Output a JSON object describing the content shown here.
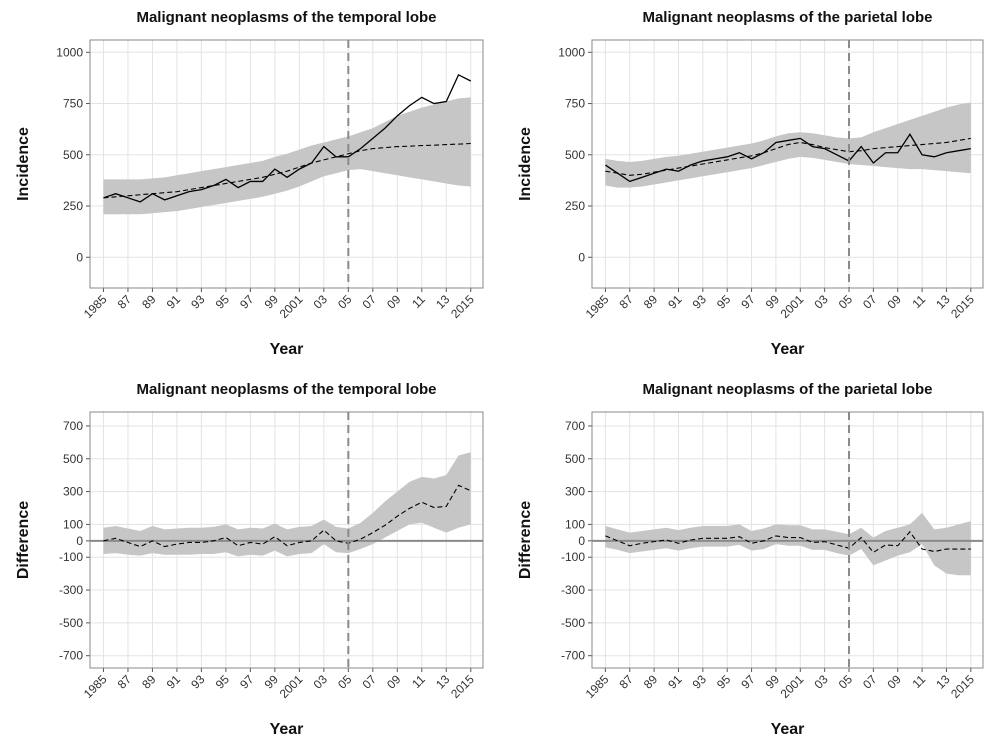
{
  "chart_data": [
    {
      "type": "line",
      "title": "Malignant neoplasms of the temporal lobe",
      "xlabel": "Year",
      "ylabel": "Incidence",
      "x": [
        1985,
        1986,
        1987,
        1988,
        1989,
        1990,
        1991,
        1992,
        1993,
        1994,
        1995,
        1996,
        1997,
        1998,
        1999,
        2000,
        2001,
        2002,
        2003,
        2004,
        2005,
        2006,
        2007,
        2008,
        2009,
        2010,
        2011,
        2012,
        2013,
        2014,
        2015
      ],
      "xlim": [
        1983.9,
        2016
      ],
      "xticks": [
        1985,
        {
          "value": 1987,
          "label": "87"
        },
        {
          "value": 1989,
          "label": "89"
        },
        {
          "value": 1991,
          "label": "91"
        },
        {
          "value": 1993,
          "label": "93"
        },
        {
          "value": 1995,
          "label": "95"
        },
        {
          "value": 1997,
          "label": "97"
        },
        {
          "value": 1999,
          "label": "99"
        },
        2001,
        {
          "value": 2003,
          "label": "03"
        },
        {
          "value": 2005,
          "label": "05"
        },
        {
          "value": 2007,
          "label": "07"
        },
        {
          "value": 2009,
          "label": "09"
        },
        {
          "value": 2011,
          "label": "11"
        },
        {
          "value": 2013,
          "label": "13"
        },
        2015
      ],
      "ylim": [
        -150,
        1060
      ],
      "yticks": [
        0,
        250,
        500,
        750,
        1000
      ],
      "grid": true,
      "vline": 2005,
      "color": "#000000",
      "band_color": "#c6c6c6",
      "vline_color": "#8a8a8a",
      "observed": [
        290,
        310,
        290,
        270,
        310,
        280,
        300,
        320,
        330,
        350,
        380,
        340,
        370,
        370,
        430,
        390,
        430,
        460,
        540,
        490,
        490,
        530,
        580,
        630,
        690,
        740,
        780,
        750,
        760,
        890,
        860
      ],
      "predicted": [
        290,
        295,
        300,
        305,
        310,
        315,
        320,
        330,
        340,
        350,
        360,
        370,
        380,
        390,
        405,
        420,
        440,
        460,
        475,
        490,
        505,
        520,
        530,
        535,
        540,
        542,
        545,
        547,
        550,
        552,
        555
      ],
      "lower": [
        210,
        210,
        210,
        210,
        215,
        220,
        225,
        235,
        245,
        255,
        265,
        275,
        285,
        295,
        310,
        325,
        345,
        370,
        395,
        410,
        425,
        430,
        420,
        410,
        400,
        390,
        380,
        370,
        360,
        350,
        345
      ],
      "upper": [
        380,
        380,
        380,
        380,
        385,
        390,
        400,
        410,
        420,
        430,
        440,
        450,
        460,
        470,
        490,
        505,
        525,
        545,
        560,
        575,
        590,
        610,
        630,
        660,
        690,
        710,
        730,
        745,
        760,
        775,
        780
      ]
    },
    {
      "type": "line",
      "title": "Malignant neoplasms of the parietal lobe",
      "xlabel": "Year",
      "ylabel": "Incidence",
      "x": [
        1985,
        1986,
        1987,
        1988,
        1989,
        1990,
        1991,
        1992,
        1993,
        1994,
        1995,
        1996,
        1997,
        1998,
        1999,
        2000,
        2001,
        2002,
        2003,
        2004,
        2005,
        2006,
        2007,
        2008,
        2009,
        2010,
        2011,
        2012,
        2013,
        2014,
        2015
      ],
      "xlim": [
        1983.9,
        2016
      ],
      "xticks": [
        1985,
        {
          "value": 1987,
          "label": "87"
        },
        {
          "value": 1989,
          "label": "89"
        },
        {
          "value": 1991,
          "label": "91"
        },
        {
          "value": 1993,
          "label": "93"
        },
        {
          "value": 1995,
          "label": "95"
        },
        {
          "value": 1997,
          "label": "97"
        },
        {
          "value": 1999,
          "label": "99"
        },
        2001,
        {
          "value": 2003,
          "label": "03"
        },
        {
          "value": 2005,
          "label": "05"
        },
        {
          "value": 2007,
          "label": "07"
        },
        {
          "value": 2009,
          "label": "09"
        },
        {
          "value": 2011,
          "label": "11"
        },
        {
          "value": 2013,
          "label": "13"
        },
        2015
      ],
      "ylim": [
        -150,
        1060
      ],
      "yticks": [
        0,
        250,
        500,
        750,
        1000
      ],
      "grid": true,
      "vline": 2005,
      "color": "#000000",
      "band_color": "#c6c6c6",
      "vline_color": "#8a8a8a",
      "observed": [
        450,
        410,
        370,
        390,
        410,
        430,
        420,
        450,
        470,
        480,
        490,
        510,
        480,
        510,
        560,
        570,
        580,
        540,
        530,
        500,
        470,
        540,
        460,
        510,
        510,
        600,
        500,
        490,
        510,
        520,
        530
      ],
      "predicted": [
        420,
        410,
        400,
        405,
        415,
        425,
        435,
        445,
        455,
        465,
        475,
        485,
        495,
        510,
        530,
        550,
        560,
        550,
        535,
        525,
        515,
        520,
        530,
        535,
        540,
        545,
        550,
        555,
        560,
        570,
        580
      ],
      "lower": [
        350,
        340,
        340,
        345,
        355,
        365,
        375,
        385,
        395,
        405,
        415,
        425,
        435,
        450,
        465,
        480,
        490,
        485,
        475,
        465,
        455,
        450,
        445,
        440,
        435,
        430,
        430,
        425,
        420,
        415,
        410
      ],
      "upper": [
        480,
        470,
        465,
        470,
        480,
        490,
        495,
        505,
        515,
        525,
        535,
        545,
        555,
        570,
        590,
        605,
        610,
        605,
        595,
        585,
        580,
        585,
        610,
        630,
        650,
        670,
        690,
        710,
        730,
        745,
        755
      ]
    },
    {
      "type": "difference",
      "title": "Malignant neoplasms of the temporal lobe",
      "xlabel": "Year",
      "ylabel": "Difference",
      "x": [
        1985,
        1986,
        1987,
        1988,
        1989,
        1990,
        1991,
        1992,
        1993,
        1994,
        1995,
        1996,
        1997,
        1998,
        1999,
        2000,
        2001,
        2002,
        2003,
        2004,
        2005,
        2006,
        2007,
        2008,
        2009,
        2010,
        2011,
        2012,
        2013,
        2014,
        2015
      ],
      "xlim": [
        1983.9,
        2016
      ],
      "xticks": [
        1985,
        {
          "value": 1987,
          "label": "87"
        },
        {
          "value": 1989,
          "label": "89"
        },
        {
          "value": 1991,
          "label": "91"
        },
        {
          "value": 1993,
          "label": "93"
        },
        {
          "value": 1995,
          "label": "95"
        },
        {
          "value": 1997,
          "label": "97"
        },
        {
          "value": 1999,
          "label": "99"
        },
        2001,
        {
          "value": 2003,
          "label": "03"
        },
        {
          "value": 2005,
          "label": "05"
        },
        {
          "value": 2007,
          "label": "07"
        },
        {
          "value": 2009,
          "label": "09"
        },
        {
          "value": 2011,
          "label": "11"
        },
        {
          "value": 2013,
          "label": "13"
        },
        2015
      ],
      "ylim": [
        -775,
        785
      ],
      "yticks": [
        -700,
        -500,
        -300,
        -100,
        0,
        100,
        300,
        500,
        700
      ],
      "grid": true,
      "vline": 2005,
      "hline": 0,
      "color": "#000000",
      "band_color": "#c6c6c6",
      "vline_color": "#8a8a8a",
      "predicted": [
        0,
        15,
        -10,
        -35,
        0,
        -35,
        -20,
        -10,
        -10,
        0,
        20,
        -30,
        -10,
        -20,
        25,
        -30,
        -10,
        0,
        65,
        0,
        -15,
        10,
        50,
        95,
        150,
        198,
        235,
        203,
        210,
        338,
        305
      ],
      "lower": [
        -80,
        -75,
        -85,
        -90,
        -75,
        -85,
        -85,
        -85,
        -80,
        -80,
        -70,
        -95,
        -85,
        -90,
        -60,
        -95,
        -80,
        -75,
        -20,
        -70,
        -75,
        -50,
        -20,
        20,
        60,
        100,
        110,
        80,
        50,
        80,
        100
      ],
      "upper": [
        80,
        90,
        75,
        60,
        90,
        70,
        75,
        80,
        80,
        85,
        100,
        70,
        80,
        75,
        105,
        70,
        85,
        90,
        130,
        85,
        75,
        110,
        170,
        240,
        300,
        360,
        390,
        380,
        400,
        520,
        540
      ]
    },
    {
      "type": "difference",
      "title": "Malignant neoplasms of the parietal lobe",
      "xlabel": "Year",
      "ylabel": "Difference",
      "x": [
        1985,
        1986,
        1987,
        1988,
        1989,
        1990,
        1991,
        1992,
        1993,
        1994,
        1995,
        1996,
        1997,
        1998,
        1999,
        2000,
        2001,
        2002,
        2003,
        2004,
        2005,
        2006,
        2007,
        2008,
        2009,
        2010,
        2011,
        2012,
        2013,
        2014,
        2015
      ],
      "xlim": [
        1983.9,
        2016
      ],
      "xticks": [
        1985,
        {
          "value": 1987,
          "label": "87"
        },
        {
          "value": 1989,
          "label": "89"
        },
        {
          "value": 1991,
          "label": "91"
        },
        {
          "value": 1993,
          "label": "93"
        },
        {
          "value": 1995,
          "label": "95"
        },
        {
          "value": 1997,
          "label": "97"
        },
        {
          "value": 1999,
          "label": "99"
        },
        2001,
        {
          "value": 2003,
          "label": "03"
        },
        {
          "value": 2005,
          "label": "05"
        },
        {
          "value": 2007,
          "label": "07"
        },
        {
          "value": 2009,
          "label": "09"
        },
        {
          "value": 2011,
          "label": "11"
        },
        {
          "value": 2013,
          "label": "13"
        },
        2015
      ],
      "ylim": [
        -775,
        785
      ],
      "yticks": [
        -700,
        -500,
        -300,
        -100,
        0,
        100,
        300,
        500,
        700
      ],
      "grid": true,
      "vline": 2005,
      "hline": 0,
      "color": "#000000",
      "band_color": "#c6c6c6",
      "vline_color": "#8a8a8a",
      "predicted": [
        30,
        0,
        -30,
        -15,
        -5,
        5,
        -15,
        5,
        15,
        15,
        15,
        25,
        -15,
        0,
        30,
        20,
        20,
        -10,
        -5,
        -25,
        -45,
        20,
        -70,
        -25,
        -30,
        55,
        -50,
        -65,
        -50,
        -50,
        -50
      ],
      "lower": [
        -40,
        -55,
        -75,
        -65,
        -55,
        -45,
        -60,
        -45,
        -35,
        -35,
        -35,
        -25,
        -60,
        -50,
        -20,
        -30,
        -30,
        -55,
        -55,
        -75,
        -90,
        -50,
        -150,
        -120,
        -90,
        -70,
        -20,
        -150,
        -200,
        -210,
        -210
      ],
      "upper": [
        90,
        70,
        50,
        60,
        70,
        80,
        65,
        80,
        90,
        90,
        90,
        100,
        60,
        75,
        100,
        95,
        95,
        70,
        70,
        55,
        40,
        80,
        20,
        60,
        80,
        100,
        170,
        70,
        80,
        100,
        120
      ]
    }
  ]
}
